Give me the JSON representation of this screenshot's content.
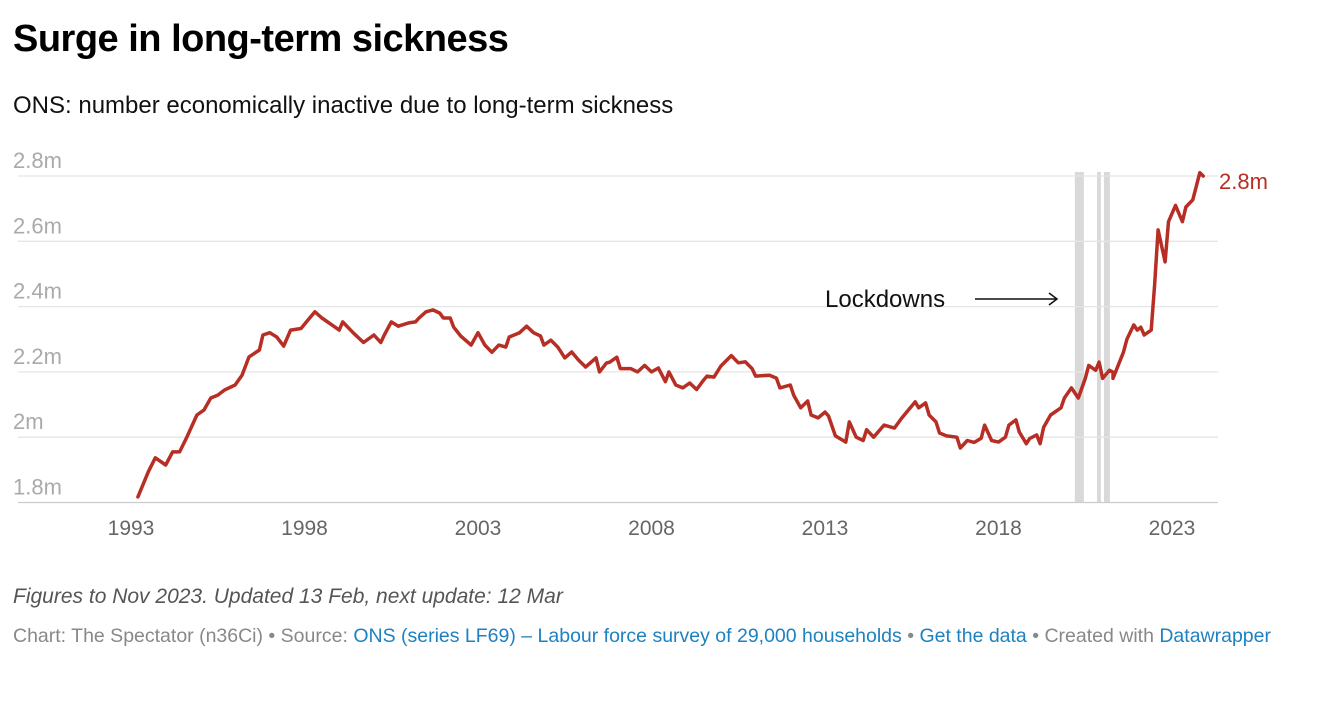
{
  "title": "Surge in long-term sickness",
  "subtitle": "ONS: number economically inactive due to long-term sickness",
  "notes": "Figures to Nov 2023. Updated 13 Feb, next update: 12 Mar",
  "footer": {
    "chart_by": "Chart: The Spectator (n36Ci)",
    "sep1": " • Source: ",
    "source_link": "ONS (series LF69) – Labour force survey of 29,000 households",
    "sep2": " • ",
    "data_link": "Get the data",
    "sep3": " • Created with ",
    "dw_link": "Datawrapper"
  },
  "colors": {
    "line": "#b72e25",
    "band": "#d9d9d9",
    "grid": "#e5e5e5"
  },
  "chart_data": {
    "type": "line",
    "title": "Surge in long-term sickness",
    "ylabel": "",
    "xlabel": "",
    "ylim": [
      1.8,
      2.8
    ],
    "xlim": [
      1991.5,
      2024.6
    ],
    "y_ticks": [
      {
        "v": 1.8,
        "label": "1.8m"
      },
      {
        "v": 2.0,
        "label": "2m"
      },
      {
        "v": 2.2,
        "label": "2.2m"
      },
      {
        "v": 2.4,
        "label": "2.4m"
      },
      {
        "v": 2.6,
        "label": "2.6m"
      },
      {
        "v": 2.8,
        "label": "2.8m"
      }
    ],
    "x_ticks": [
      {
        "v": 1993,
        "label": "1993"
      },
      {
        "v": 1998,
        "label": "1998"
      },
      {
        "v": 2003,
        "label": "2003"
      },
      {
        "v": 2008,
        "label": "2008"
      },
      {
        "v": 2013,
        "label": "2013"
      },
      {
        "v": 2018,
        "label": "2018"
      },
      {
        "v": 2023,
        "label": "2023"
      }
    ],
    "end_label": "2.8m",
    "annotation": {
      "text": "Lockdowns",
      "x": 2017.5,
      "y": 2.39
    },
    "bands": [
      [
        2020.2,
        2020.46
      ],
      [
        2020.84,
        2020.95
      ],
      [
        2021.04,
        2021.21
      ]
    ],
    "series": [
      {
        "name": "Economically inactive due to long-term sickness (m)",
        "x": [
          1993.2,
          1993.5,
          1993.7,
          1994.0,
          1994.2,
          1994.4,
          1994.6,
          1994.9,
          1995.1,
          1995.3,
          1995.5,
          1995.7,
          1996.0,
          1996.2,
          1996.4,
          1996.7,
          1996.8,
          1997.0,
          1997.2,
          1997.4,
          1997.6,
          1997.9,
          1998.1,
          1998.3,
          1998.5,
          1998.8,
          1999.0,
          1999.1,
          1999.4,
          1999.7,
          2000.0,
          2000.2,
          2000.3,
          2000.5,
          2000.7,
          2001.0,
          2001.2,
          2001.3,
          2001.5,
          2001.7,
          2001.9,
          2002.0,
          2002.2,
          2002.3,
          2002.5,
          2002.8,
          2003.0,
          2003.2,
          2003.4,
          2003.6,
          2003.8,
          2003.9,
          2004.2,
          2004.4,
          2004.6,
          2004.8,
          2004.9,
          2005.1,
          2005.3,
          2005.5,
          2005.7,
          2005.9,
          2006.1,
          2006.4,
          2006.5,
          2006.7,
          2006.8,
          2007.0,
          2007.1,
          2007.4,
          2007.6,
          2007.8,
          2008.0,
          2008.2,
          2008.4,
          2008.5,
          2008.7,
          2008.9,
          2009.1,
          2009.3,
          2009.5,
          2009.6,
          2009.8,
          2010.0,
          2010.3,
          2010.5,
          2010.7,
          2010.9,
          2011.0,
          2011.4,
          2011.6,
          2011.7,
          2012.0,
          2012.1,
          2012.3,
          2012.5,
          2012.6,
          2012.8,
          2013.0,
          2013.1,
          2013.3,
          2013.6,
          2013.7,
          2013.9,
          2014.1,
          2014.2,
          2014.4,
          2014.7,
          2015.0,
          2015.2,
          2015.4,
          2015.6,
          2015.7,
          2015.9,
          2016.0,
          2016.2,
          2016.3,
          2016.5,
          2016.8,
          2016.9,
          2017.1,
          2017.3,
          2017.5,
          2017.6,
          2017.8,
          2018.0,
          2018.2,
          2018.3,
          2018.5,
          2018.6,
          2018.8,
          2018.9,
          2019.1,
          2019.2,
          2019.3,
          2019.5,
          2019.8,
          2019.9,
          2020.1,
          2020.3,
          2020.5,
          2020.6,
          2020.8,
          2020.9,
          2021.0,
          2021.2,
          2021.3,
          2021.3,
          2021.6,
          2021.7,
          2021.9,
          2022.0,
          2022.1,
          2022.2,
          2022.4,
          2022.5,
          2022.6,
          2022.8,
          2022.9,
          2023.1,
          2023.3,
          2023.4,
          2023.6,
          2023.8,
          2023.9
        ],
        "y": [
          1.817,
          1.894,
          1.937,
          1.915,
          1.955,
          1.955,
          1.998,
          2.068,
          2.083,
          2.12,
          2.129,
          2.145,
          2.16,
          2.19,
          2.246,
          2.267,
          2.313,
          2.32,
          2.307,
          2.279,
          2.328,
          2.333,
          2.359,
          2.384,
          2.365,
          2.343,
          2.328,
          2.353,
          2.32,
          2.29,
          2.313,
          2.29,
          2.313,
          2.353,
          2.34,
          2.35,
          2.353,
          2.365,
          2.384,
          2.39,
          2.38,
          2.365,
          2.365,
          2.337,
          2.31,
          2.282,
          2.32,
          2.282,
          2.26,
          2.282,
          2.276,
          2.307,
          2.32,
          2.34,
          2.32,
          2.31,
          2.282,
          2.297,
          2.276,
          2.243,
          2.261,
          2.236,
          2.215,
          2.243,
          2.2,
          2.227,
          2.23,
          2.245,
          2.21,
          2.21,
          2.2,
          2.22,
          2.2,
          2.212,
          2.17,
          2.2,
          2.16,
          2.151,
          2.166,
          2.146,
          2.175,
          2.187,
          2.184,
          2.218,
          2.25,
          2.228,
          2.231,
          2.21,
          2.187,
          2.19,
          2.181,
          2.151,
          2.16,
          2.128,
          2.09,
          2.111,
          2.068,
          2.059,
          2.077,
          2.065,
          2.004,
          1.985,
          2.047,
          2.0,
          1.99,
          2.023,
          2.0,
          2.037,
          2.028,
          2.057,
          2.083,
          2.108,
          2.09,
          2.105,
          2.068,
          2.047,
          2.013,
          2.004,
          2.0,
          1.967,
          1.99,
          1.984,
          1.997,
          2.037,
          1.99,
          1.985,
          2.0,
          2.037,
          2.053,
          2.016,
          1.98,
          1.996,
          2.007,
          1.98,
          2.03,
          2.068,
          2.09,
          2.12,
          2.151,
          2.12,
          2.18,
          2.22,
          2.205,
          2.23,
          2.18,
          2.205,
          2.199,
          2.18,
          2.26,
          2.3,
          2.344,
          2.328,
          2.337,
          2.313,
          2.328,
          2.47,
          2.635,
          2.537,
          2.66,
          2.71,
          2.66,
          2.705,
          2.727,
          2.81,
          2.8
        ]
      }
    ]
  }
}
